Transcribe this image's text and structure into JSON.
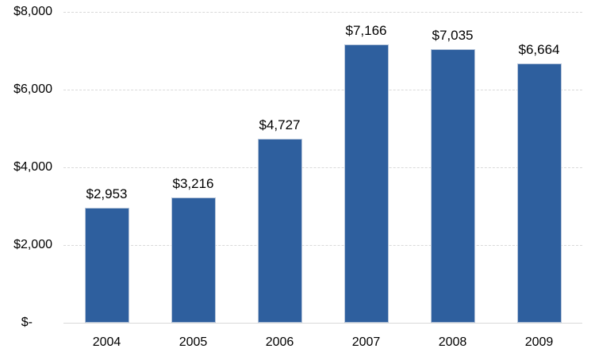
{
  "chart_data": {
    "type": "bar",
    "title": "",
    "xlabel": "",
    "ylabel": "",
    "categories": [
      "2004",
      "2005",
      "2006",
      "2007",
      "2008",
      "2009"
    ],
    "values": [
      2953,
      3216,
      4727,
      7166,
      7035,
      6664
    ],
    "value_labels": [
      "$2,953",
      "$3,216",
      "$4,727",
      "$7,166",
      "$7,035",
      "$6,664"
    ],
    "series_name": "",
    "ylim": [
      0,
      8000
    ],
    "y_ticks": [
      {
        "value": 8000,
        "label": "$8,000"
      },
      {
        "value": 6000,
        "label": "$6,000"
      },
      {
        "value": 4000,
        "label": "$4,000"
      },
      {
        "value": 2000,
        "label": "$2,000"
      },
      {
        "value": 0,
        "label": "$-"
      }
    ],
    "grid": "horizontal-dashed",
    "legend": "none",
    "colors": {
      "bar_fill": "#2E5F9E",
      "bar_border": "#B6C5DA",
      "gridline": "#D9D9D9",
      "text": "#000000",
      "background": "#FFFFFF"
    }
  }
}
